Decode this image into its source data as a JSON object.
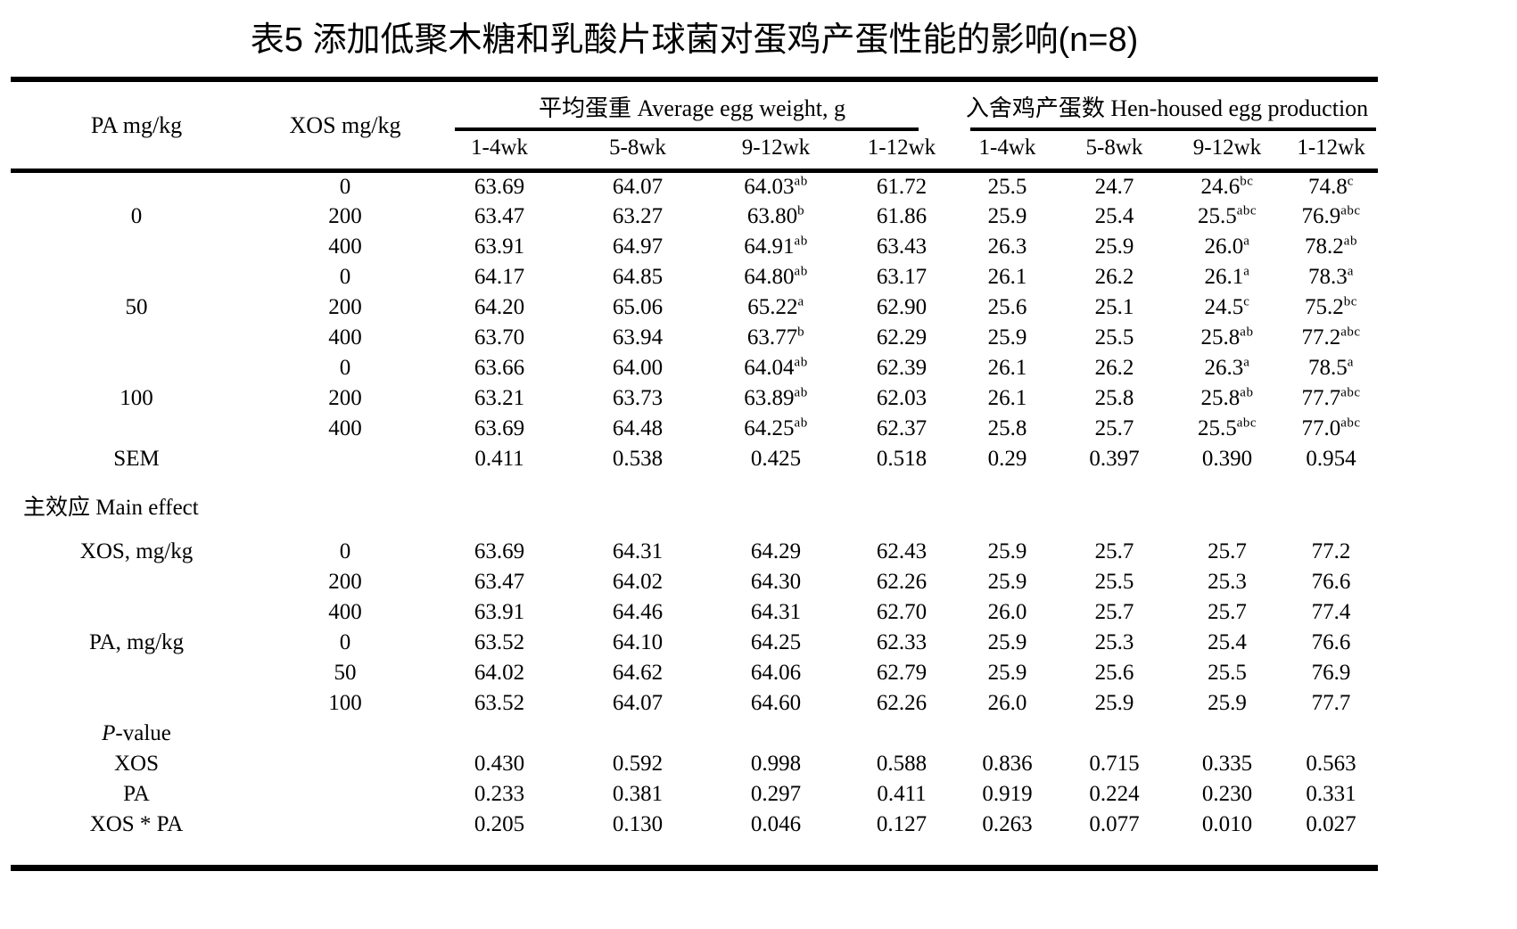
{
  "title": "表5 添加低聚木糖和乳酸片球菌对蛋鸡产蛋性能的影响(n=8)",
  "table": {
    "header": {
      "pa": "PA mg/kg",
      "xos": "XOS mg/kg",
      "group_egg_weight": "平均蛋重 Average egg weight, g",
      "group_egg_production": "入舍鸡产蛋数 Hen-housed egg production",
      "subcols": [
        "1-4wk",
        "5-8wk",
        "9-12wk",
        "1-12wk",
        "1-4wk",
        "5-8wk",
        "9-12wk",
        "1-12wk"
      ]
    },
    "rows": [
      {
        "type": "data",
        "cells": [
          "",
          "0",
          "63.69",
          "64.07",
          "64.03^ab",
          "61.72",
          "25.5",
          "24.7",
          "24.6^bc",
          "74.8^c"
        ]
      },
      {
        "type": "data",
        "cells": [
          "0",
          "200",
          "63.47",
          "63.27",
          "63.80^b",
          "61.86",
          "25.9",
          "25.4",
          "25.5^abc",
          "76.9^abc"
        ]
      },
      {
        "type": "data",
        "cells": [
          "",
          "400",
          "63.91",
          "64.97",
          "64.91^ab",
          "63.43",
          "26.3",
          "25.9",
          "26.0^a",
          "78.2^ab"
        ]
      },
      {
        "type": "data",
        "cells": [
          "",
          "0",
          "64.17",
          "64.85",
          "64.80^ab",
          "63.17",
          "26.1",
          "26.2",
          "26.1^a",
          "78.3^a"
        ]
      },
      {
        "type": "data",
        "cells": [
          "50",
          "200",
          "64.20",
          "65.06",
          "65.22^a",
          "62.90",
          "25.6",
          "25.1",
          "24.5^c",
          "75.2^bc"
        ]
      },
      {
        "type": "data",
        "cells": [
          "",
          "400",
          "63.70",
          "63.94",
          "63.77^b",
          "62.29",
          "25.9",
          "25.5",
          "25.8^ab",
          "77.2^abc"
        ]
      },
      {
        "type": "data",
        "cells": [
          "",
          "0",
          "63.66",
          "64.00",
          "64.04^ab",
          "62.39",
          "26.1",
          "26.2",
          "26.3^a",
          "78.5^a"
        ]
      },
      {
        "type": "data",
        "cells": [
          "100",
          "200",
          "63.21",
          "63.73",
          "63.89^ab",
          "62.03",
          "26.1",
          "25.8",
          "25.8^ab",
          "77.7^abc"
        ]
      },
      {
        "type": "data",
        "cells": [
          "",
          "400",
          "63.69",
          "64.48",
          "64.25^ab",
          "62.37",
          "25.8",
          "25.7",
          "25.5^abc",
          "77.0^abc"
        ]
      },
      {
        "type": "data",
        "cells": [
          "SEM",
          "",
          "0.411",
          "0.538",
          "0.425",
          "0.518",
          "0.29",
          "0.397",
          "0.390",
          "0.954"
        ]
      },
      {
        "type": "section",
        "gap_before": true,
        "cells": [
          "主效应 Main effect",
          "",
          "",
          "",
          "",
          "",
          "",
          "",
          "",
          ""
        ]
      },
      {
        "type": "data",
        "gap_before": true,
        "cells": [
          "XOS, mg/kg",
          "0",
          "63.69",
          "64.31",
          "64.29",
          "62.43",
          "25.9",
          "25.7",
          "25.7",
          "77.2"
        ]
      },
      {
        "type": "data",
        "cells": [
          "",
          "200",
          "63.47",
          "64.02",
          "64.30",
          "62.26",
          "25.9",
          "25.5",
          "25.3",
          "76.6"
        ]
      },
      {
        "type": "data",
        "cells": [
          "",
          "400",
          "63.91",
          "64.46",
          "64.31",
          "62.70",
          "26.0",
          "25.7",
          "25.7",
          "77.4"
        ]
      },
      {
        "type": "data",
        "cells": [
          "PA, mg/kg",
          "0",
          "63.52",
          "64.10",
          "64.25",
          "62.33",
          "25.9",
          "25.3",
          "25.4",
          "76.6"
        ]
      },
      {
        "type": "data",
        "cells": [
          "",
          "50",
          "64.02",
          "64.62",
          "64.06",
          "62.79",
          "25.9",
          "25.6",
          "25.5",
          "76.9"
        ]
      },
      {
        "type": "data",
        "cells": [
          "",
          "100",
          "63.52",
          "64.07",
          "64.60",
          "62.26",
          "26.0",
          "25.9",
          "25.9",
          "77.7"
        ]
      },
      {
        "type": "pvalue-head",
        "cells": [
          "P-value",
          "",
          "",
          "",
          "",
          "",
          "",
          "",
          "",
          ""
        ]
      },
      {
        "type": "data",
        "cells": [
          "XOS",
          "",
          "0.430",
          "0.592",
          "0.998",
          "0.588",
          "0.836",
          "0.715",
          "0.335",
          "0.563"
        ]
      },
      {
        "type": "data",
        "cells": [
          "PA",
          "",
          "0.233",
          "0.381",
          "0.297",
          "0.411",
          "0.919",
          "0.224",
          "0.230",
          "0.331"
        ]
      },
      {
        "type": "data",
        "cells": [
          "XOS * PA",
          "",
          "0.205",
          "0.130",
          "0.046",
          "0.127",
          "0.263",
          "0.077",
          "0.010",
          "0.027"
        ]
      }
    ]
  }
}
